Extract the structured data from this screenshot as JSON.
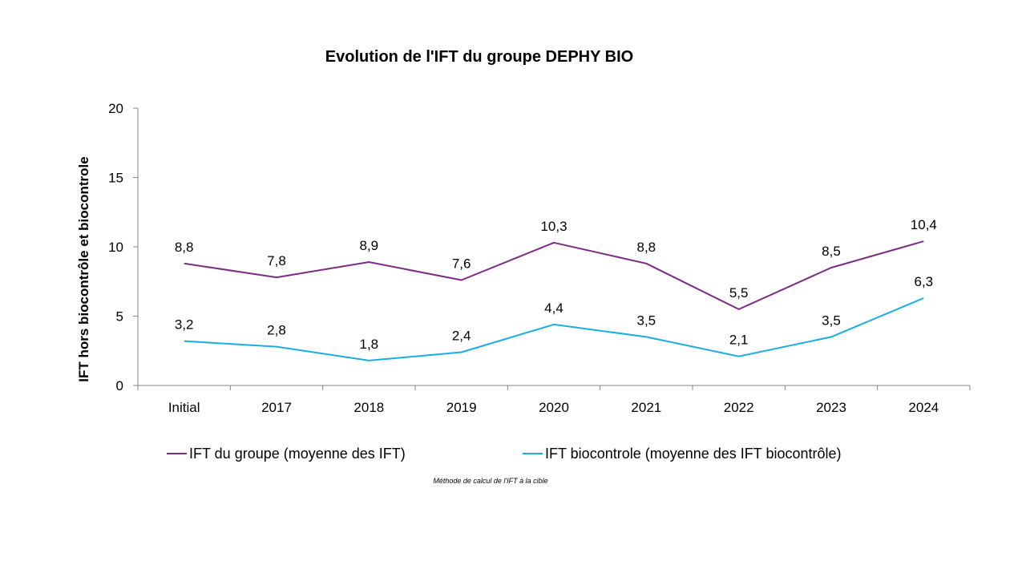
{
  "chart_data": {
    "type": "line",
    "title": "Evolution de l'IFT du groupe DEPHY BIO",
    "xlabel": "",
    "ylabel": "IFT  hors biocontrôle  et biocontrole",
    "ylim": [
      0,
      20
    ],
    "yticks": [
      0,
      5,
      10,
      15,
      20
    ],
    "categories": [
      "Initial",
      "2017",
      "2018",
      "2019",
      "2020",
      "2021",
      "2022",
      "2023",
      "2024"
    ],
    "series": [
      {
        "name": "IFT du groupe (moyenne des IFT)",
        "color": "#7B2C83",
        "values": [
          8.8,
          7.8,
          8.9,
          7.6,
          10.3,
          8.8,
          5.5,
          8.5,
          10.4
        ],
        "labels": [
          "8,8",
          "7,8",
          "8,9",
          "7,6",
          "10,3",
          "8,8",
          "5,5",
          "8,5",
          "10,4"
        ]
      },
      {
        "name": "IFT biocontrole (moyenne des IFT biocontrôle)",
        "color": "#1AADE0",
        "values": [
          3.2,
          2.8,
          1.8,
          2.4,
          4.4,
          3.5,
          2.1,
          3.5,
          6.3
        ],
        "labels": [
          "3,2",
          "2,8",
          "1,8",
          "2,4",
          "4,4",
          "3,5",
          "2,1",
          "3,5",
          "6,3"
        ]
      }
    ],
    "legend": "bottom",
    "note": "Méthode de calcul de l'IFT à la cible"
  }
}
